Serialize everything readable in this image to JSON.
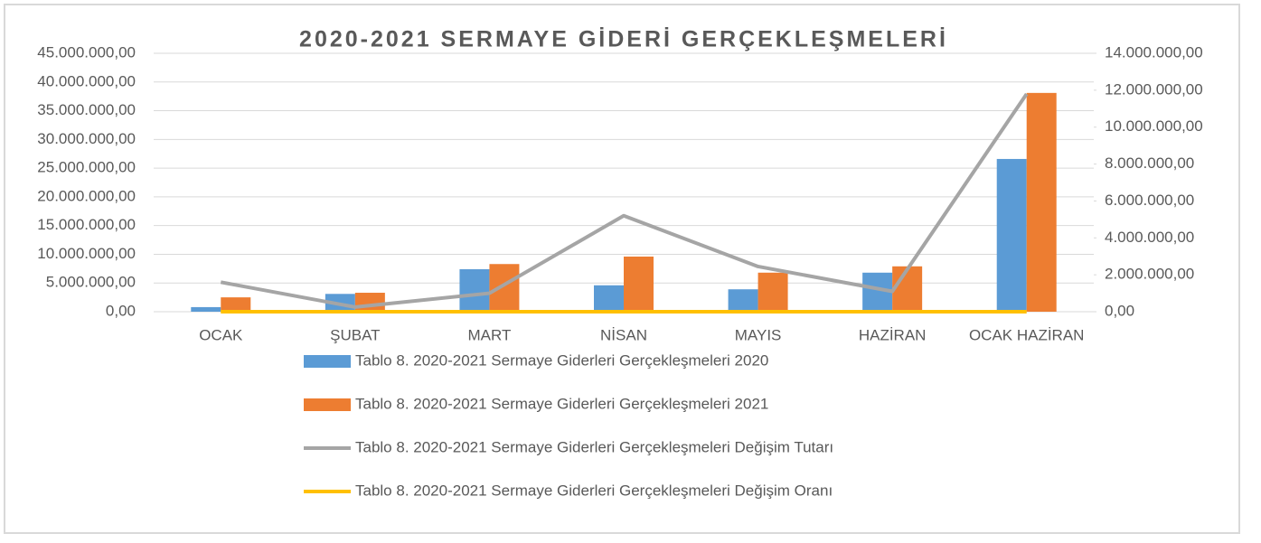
{
  "chart_data": {
    "type": "bar",
    "title": "2020-2021 SERMAYE GİDERİ GERÇEKLEŞMELERİ",
    "categories": [
      "OCAK",
      "ŞUBAT",
      "MART",
      "NİSAN",
      "MAYIS",
      "HAZİRAN",
      "OCAK HAZİRAN"
    ],
    "series": [
      {
        "name": "Tablo 8. 2020-2021 Sermaye Giderleri Gerçekleşmeleri 2020",
        "type": "bar",
        "color": "#5b9bd5",
        "values": [
          800000,
          3100000,
          7400000,
          4600000,
          3900000,
          6800000,
          26600000
        ]
      },
      {
        "name": "Tablo 8. 2020-2021 Sermaye Giderleri Gerçekleşmeleri 2021",
        "type": "bar",
        "color": "#ed7d31",
        "values": [
          2500000,
          3300000,
          8300000,
          9600000,
          6800000,
          7900000,
          38100000
        ]
      },
      {
        "name": "Tablo 8. 2020-2021 Sermaye Giderleri Gerçekleşmeleri Değişim Tutarı",
        "type": "line",
        "axis": "y2",
        "color": "#a5a5a5",
        "values": [
          1600000,
          250000,
          1000000,
          5200000,
          2450000,
          1100000,
          11800000
        ]
      },
      {
        "name": "Tablo 8. 2020-2021 Sermaye Giderleri Gerçekleşmeleri Değişim Oranı",
        "type": "line",
        "axis": "y2",
        "color": "#ffc000",
        "values": [
          0,
          0,
          0,
          0,
          0,
          0,
          0
        ]
      }
    ],
    "ylim": [
      0,
      45000000
    ],
    "yticks": [
      {
        "value": 0,
        "label": "0,00"
      },
      {
        "value": 5000000,
        "label": "5.000.000,00"
      },
      {
        "value": 10000000,
        "label": "10.000.000,00"
      },
      {
        "value": 15000000,
        "label": "15.000.000,00"
      },
      {
        "value": 20000000,
        "label": "20.000.000,00"
      },
      {
        "value": 25000000,
        "label": "25.000.000,00"
      },
      {
        "value": 30000000,
        "label": "30.000.000,00"
      },
      {
        "value": 35000000,
        "label": "35.000.000,00"
      },
      {
        "value": 40000000,
        "label": "40.000.000,00"
      },
      {
        "value": 45000000,
        "label": "45.000.000,00"
      }
    ],
    "y2lim": [
      0,
      14000000
    ],
    "y2ticks": [
      {
        "value": 0,
        "label": "0,00"
      },
      {
        "value": 2000000,
        "label": "2.000.000,00"
      },
      {
        "value": 4000000,
        "label": "4.000.000,00"
      },
      {
        "value": 6000000,
        "label": "6.000.000,00"
      },
      {
        "value": 8000000,
        "label": "8.000.000,00"
      },
      {
        "value": 10000000,
        "label": "10.000.000,00"
      },
      {
        "value": 12000000,
        "label": "12.000.000,00"
      },
      {
        "value": 14000000,
        "label": "14.000.000,00"
      }
    ],
    "grid": true,
    "legend": "bottom"
  }
}
